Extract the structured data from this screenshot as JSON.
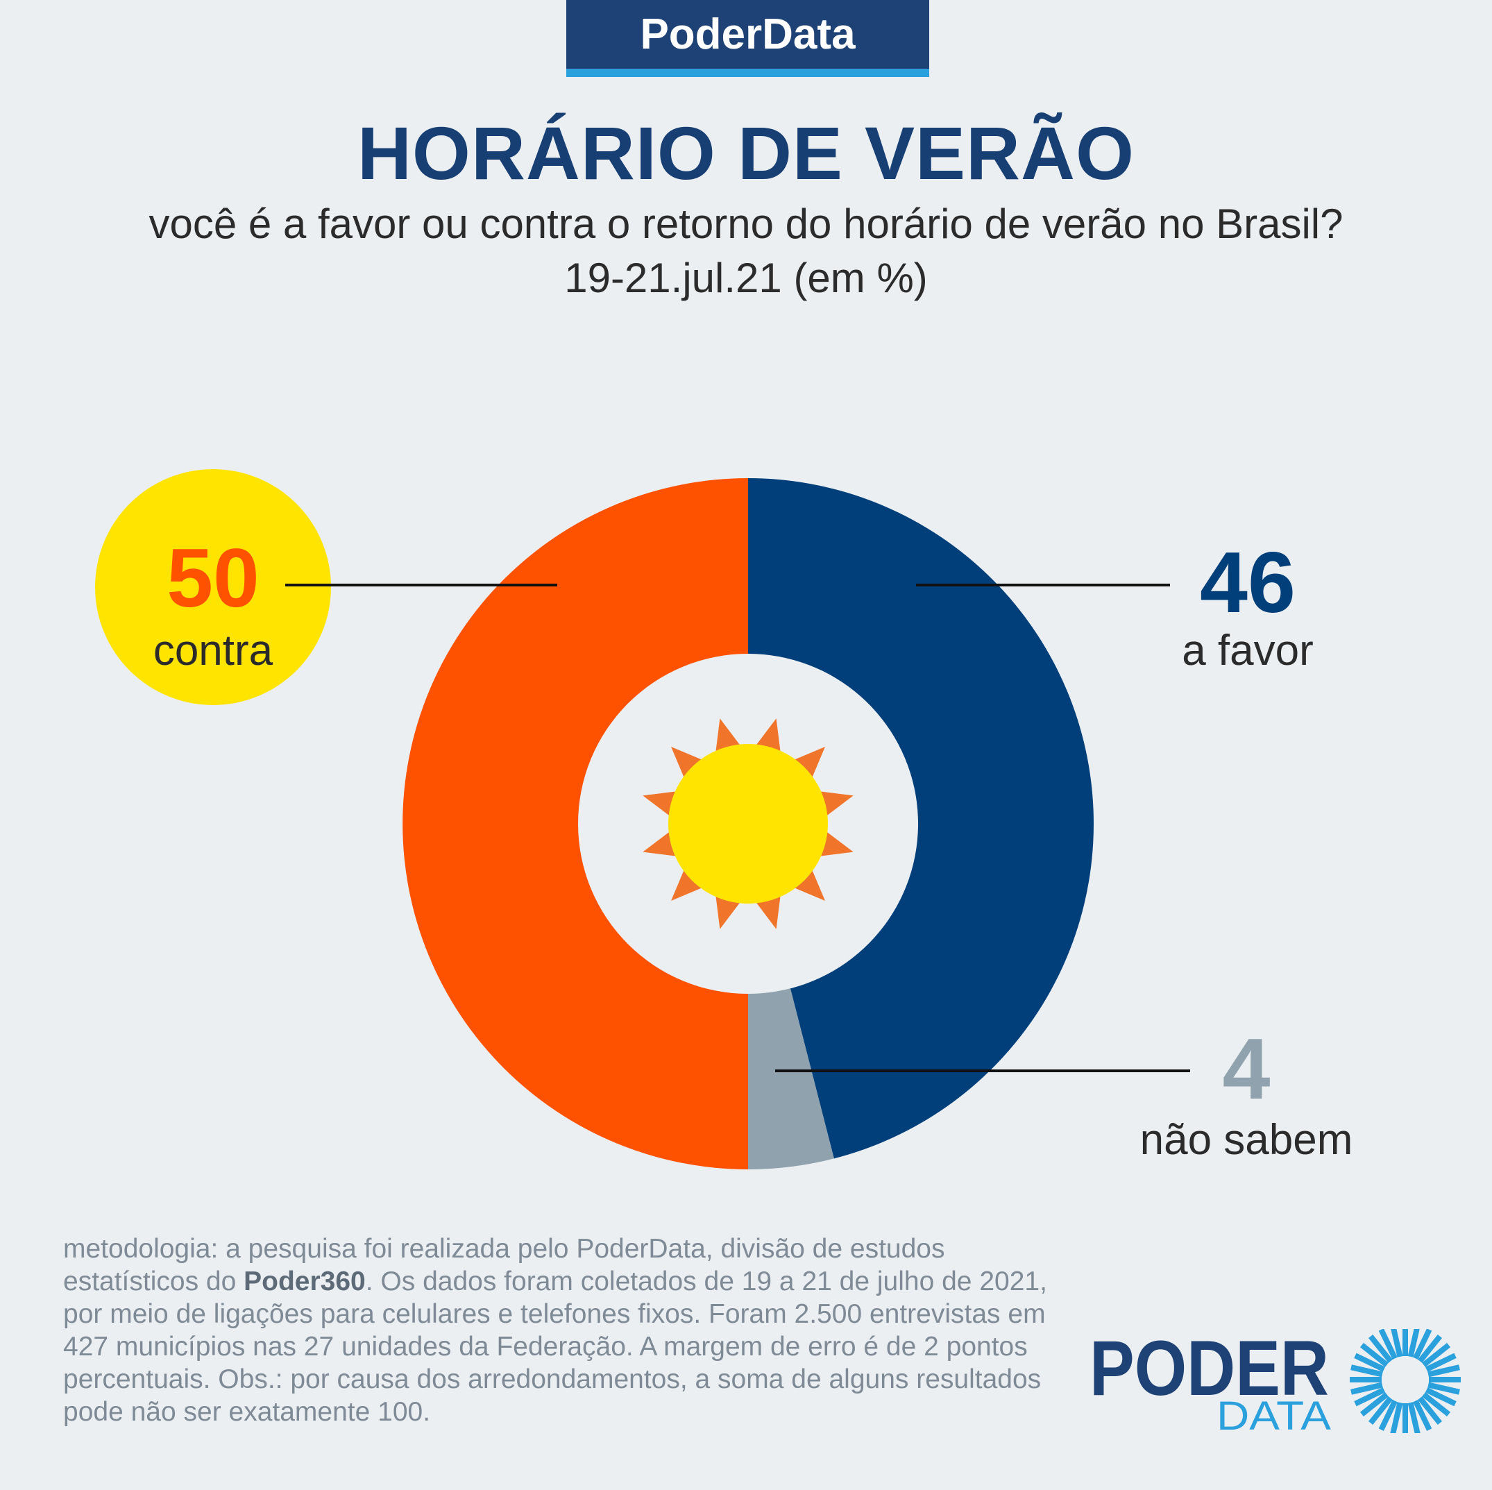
{
  "brand_tab": "PoderData",
  "title": "HORÁRIO DE VERÃO",
  "subtitle": "você é a favor ou contra o retorno do horário de verão no Brasil?",
  "date": "19-21.jul.21 (em %)",
  "chart_data": {
    "type": "pie",
    "slices": [
      {
        "label": "a favor",
        "value": 46,
        "color": "#003f7a"
      },
      {
        "label": "não sabem",
        "value": 4,
        "color": "#8fa2ad"
      },
      {
        "label": "contra",
        "value": 50,
        "color": "#ff5200"
      }
    ]
  },
  "footnote": {
    "part1": "metodologia: a pesquisa foi realizada pelo PoderData, divisão de estudos estatísticos do ",
    "bold": "Poder360",
    "part2": ". Os dados foram coletados de 19 a 21 de julho de 2021, por meio de ligações para celulares e telefones fixos. Foram 2.500 entrevistas em 427 municípios nas 27 unidades da Federação. A margem de erro é de 2 pontos percentuais. Obs.: por causa dos arredondamentos, a soma de alguns resultados pode não ser exatamente 100."
  },
  "logo": {
    "word1": "PODER",
    "word2": "DATA"
  },
  "colors": {
    "background": "#eceff2",
    "navy": "#173f73",
    "accent_blue": "#2aa0dc",
    "sun_yellow": "#ffe400",
    "sun_rays": "#f0742a"
  }
}
